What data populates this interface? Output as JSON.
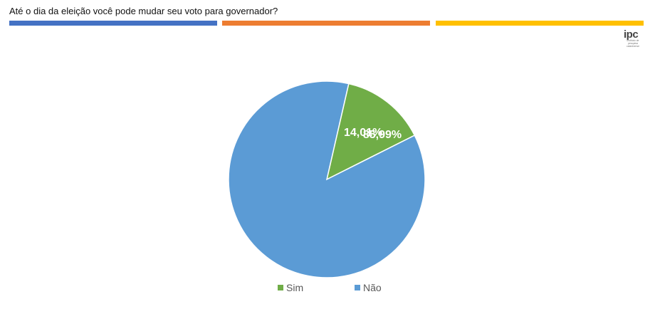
{
  "header": {
    "title": "Até o dia da eleição você pode mudar seu voto para governador?",
    "bar_colors": [
      "#4472C4",
      "#ED7D31",
      "#FFC000"
    ]
  },
  "logo": {
    "main": "ipc",
    "sub": "instituto de pesquisa catarinense"
  },
  "chart_data": {
    "type": "pie",
    "title": "",
    "slices": [
      {
        "label": "Sim",
        "value": 14.01,
        "display": "14,01%",
        "color": "#70AD47"
      },
      {
        "label": "Não",
        "value": 85.99,
        "display": "85,99%",
        "color": "#5B9BD5"
      }
    ],
    "legend_position": "bottom"
  }
}
